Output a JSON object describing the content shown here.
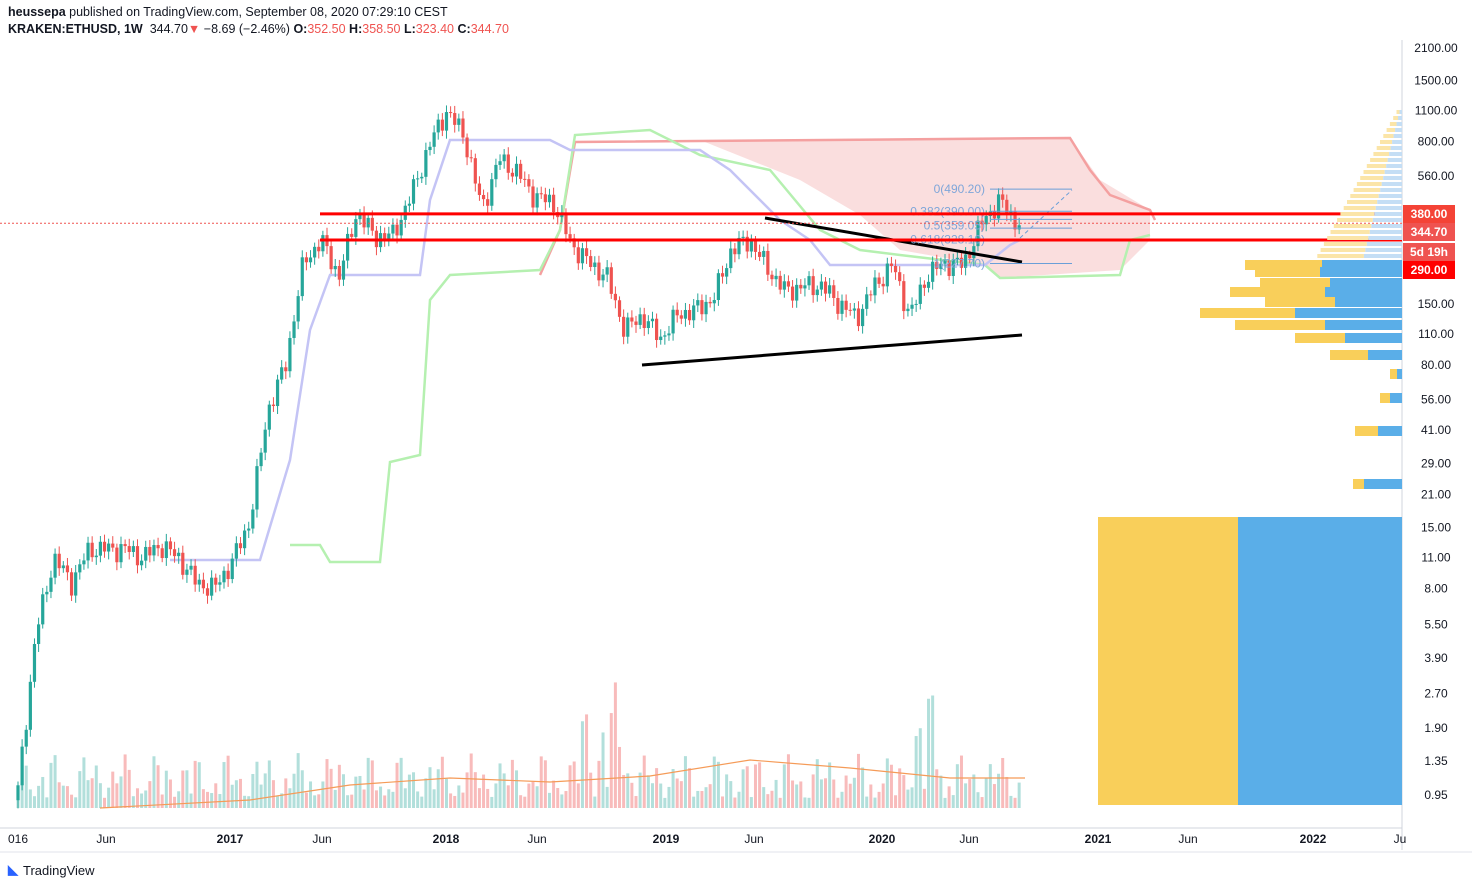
{
  "header": {
    "publisher": "heussepa",
    "published_text": "published on TradingView.com, September 08, 2020 07:29:10 CEST",
    "symbol": "KRAKEN:ETHUSD, 1W",
    "last": "344.70",
    "change": "−8.69 (−2.46%)",
    "o_label": "O:",
    "o": "352.50",
    "h_label": "H:",
    "h": "358.50",
    "l_label": "L:",
    "l": "323.40",
    "c_label": "C:",
    "c": "344.70"
  },
  "logo": "TradingView",
  "colors": {
    "up": "#26a69a",
    "down": "#ef5350",
    "hline": "#ff0000",
    "cloud": "#f8d0d0",
    "fib": "#6a9fd8",
    "vp_yellow": "#f9cf5a",
    "vp_blue": "#5aaee8"
  },
  "chart_data": {
    "type": "candlestick",
    "scale": "log",
    "interval": "1W",
    "ylim": [
      0.8,
      2300
    ],
    "y_ticks": [
      "2100.00",
      "1500.00",
      "1100.00",
      "800.00",
      "560.00",
      "150.00",
      "110.00",
      "80.00",
      "56.00",
      "41.00",
      "29.00",
      "21.00",
      "15.00",
      "11.00",
      "8.00",
      "5.50",
      "3.90",
      "2.70",
      "1.90",
      "1.35",
      "0.95"
    ],
    "x_ticks": [
      "016",
      "Jun",
      "2017",
      "Jun",
      "2018",
      "Jun",
      "2019",
      "Jun",
      "2020",
      "Jun",
      "2021",
      "Jun",
      "2022",
      "Ju"
    ],
    "monthly_closes": {
      "start": "2016-01",
      "values": [
        1.0,
        5,
        11,
        8.5,
        12,
        12,
        12,
        11,
        12.5,
        11,
        8.5,
        8,
        10.5,
        16,
        50,
        80,
        230,
        290,
        200,
        390,
        300,
        305,
        450,
        750,
        1100,
        860,
        400,
        670,
        580,
        450,
        430,
        280,
        230,
        200,
        115,
        133,
        105,
        135,
        141,
        160,
        265,
        290,
        218,
        172,
        180,
        182,
        152,
        130,
        180,
        225,
        133,
        205,
        230,
        225,
        345,
        435,
        345
      ]
    },
    "price_tags": [
      {
        "label": "380.00",
        "value": 380,
        "color": "#f44336"
      },
      {
        "label": "344.70",
        "value": 344.7,
        "color": "#ef5350"
      },
      {
        "label": "5d 19h",
        "color": "#ef5350"
      },
      {
        "label": "290.00",
        "value": 290,
        "color": "#ff0000"
      }
    ],
    "horizontal_lines": [
      380,
      290
    ],
    "fib_levels": [
      {
        "label": "0(490.20)",
        "value": 490.2
      },
      {
        "label": "0.382(390.00)",
        "value": 390
      },
      {
        "label": "0.5(359.05)",
        "value": 359.05
      },
      {
        "label": "0.618(328.10)",
        "value": 328.1
      },
      {
        "label": "1(227.70)",
        "value": 227.7
      }
    ]
  }
}
